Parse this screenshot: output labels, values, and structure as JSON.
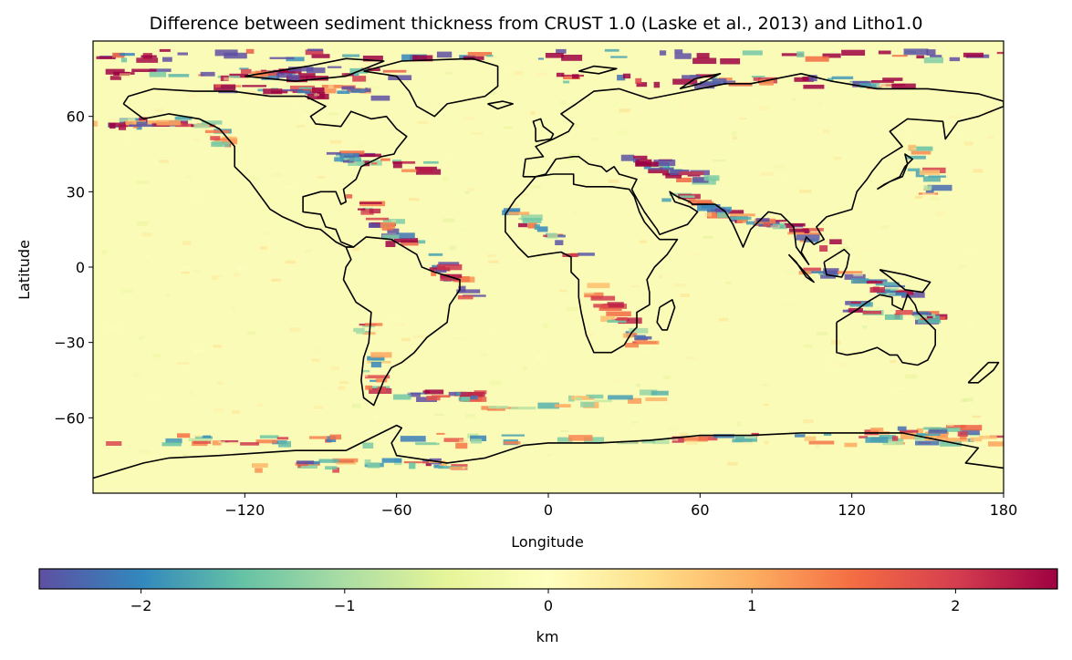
{
  "title": "Difference between sediment thickness from CRUST 1.0 (Laske et al., 2013) and Litho1.0",
  "map": {
    "xlabel": "Longitude",
    "ylabel": "Latitude",
    "projection": "PlateCarree",
    "xlim": [
      -180,
      180
    ],
    "ylim": [
      -90,
      90
    ],
    "xticks": [
      -120,
      -60,
      0,
      60,
      120,
      180
    ],
    "xtick_labels": [
      "−120",
      "−60",
      "0",
      "60",
      "120",
      "180"
    ],
    "yticks": [
      60,
      30,
      0,
      -30,
      -60
    ],
    "ytick_labels": [
      "60",
      "30",
      "0",
      "−30",
      "−60"
    ],
    "background_color": "#fbfbb8",
    "coastline_color": "#000000",
    "field_description": "difference in sediment thickness (km); mostly near zero over open ocean, large positive and negative anomalies along continental margins, Arctic shelves and around Antarctica"
  },
  "colorbar": {
    "label": "km",
    "colormap": "Spectral_r",
    "vmin": -2.5,
    "vmax": 2.5,
    "ticks": [
      -2,
      -1,
      0,
      1,
      2
    ],
    "tick_labels": [
      "−2",
      "−1",
      "0",
      "1",
      "2"
    ],
    "orientation": "horizontal",
    "stops": [
      "#5e4fa2",
      "#3288bd",
      "#66c2a5",
      "#abdda4",
      "#e6f598",
      "#ffffbf",
      "#fee08b",
      "#fdae61",
      "#f46d43",
      "#d53e4f",
      "#9e0142"
    ]
  }
}
